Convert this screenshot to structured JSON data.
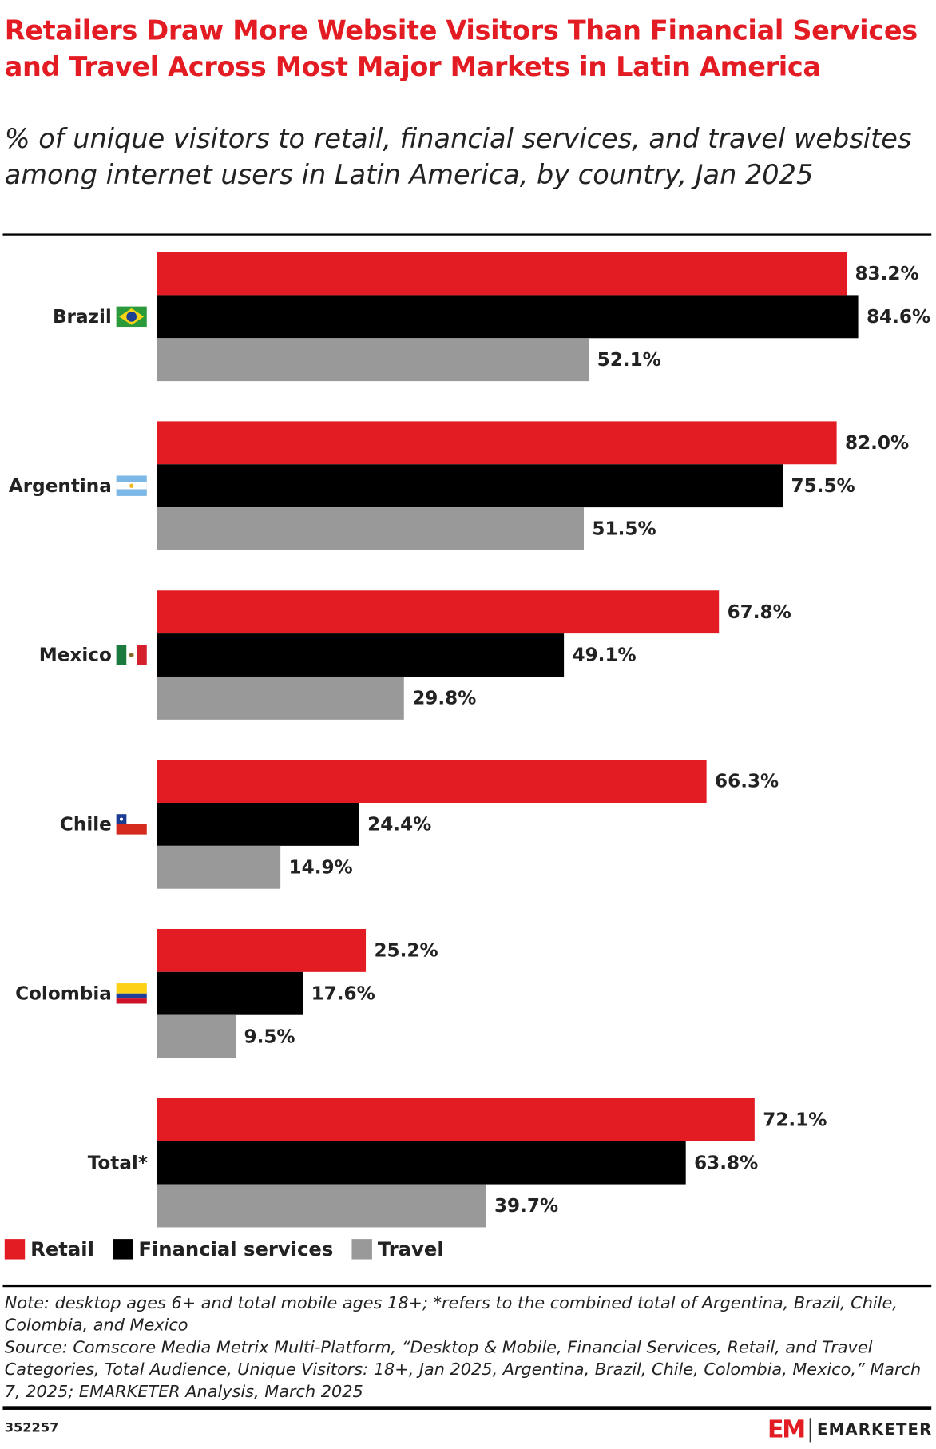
{
  "chart_data": {
    "type": "bar",
    "orientation": "horizontal",
    "title": "Retailers Draw More Website Visitors Than Financial Services and Travel Across Most Major Markets in Latin America",
    "subtitle": "% of unique visitors to retail, financial services, and travel websites among internet users in Latin America, by country, Jan 2025",
    "categories": [
      "Brazil",
      "Argentina",
      "Mexico",
      "Chile",
      "Colombia",
      "Total*"
    ],
    "series": [
      {
        "name": "Retail",
        "color": "#e31b23",
        "values": [
          83.2,
          82.0,
          67.8,
          66.3,
          25.2,
          72.1
        ],
        "value_labels": [
          "83.2%",
          "82.0%",
          "67.8%",
          "66.3%",
          "25.2%",
          "72.1%"
        ]
      },
      {
        "name": "Financial services",
        "color": "#000000",
        "values": [
          84.6,
          75.5,
          49.1,
          24.4,
          17.6,
          63.8
        ],
        "value_labels": [
          "84.6%",
          "75.5%",
          "49.1%",
          "24.4%",
          "17.6%",
          "63.8%"
        ]
      },
      {
        "name": "Travel",
        "color": "#999999",
        "values": [
          52.1,
          51.5,
          29.8,
          14.9,
          9.5,
          39.7
        ],
        "value_labels": [
          "52.1%",
          "51.5%",
          "29.8%",
          "14.9%",
          "9.5%",
          "39.7%"
        ]
      }
    ],
    "xlim": [
      0,
      100
    ],
    "grid": false,
    "legend": "bottom-left"
  },
  "notes": {
    "note": "Note: desktop ages 6+ and total mobile ages 18+; *refers to the combined total of Argentina, Brazil, Chile, Colombia, and Mexico",
    "source": "Source: Comscore Media Metrix Multi-Platform, “Desktop & Mobile, Financial Services, Retail, and Travel Categories, Total Audience, Unique Visitors: 18+, Jan 2025, Argentina, Brazil, Chile, Colombia, Mexico,” March 7, 2025; EMARKETER Analysis, March 2025"
  },
  "footer": {
    "id": "352257",
    "logo_mark": "EM",
    "brand": "EMARKETER"
  }
}
